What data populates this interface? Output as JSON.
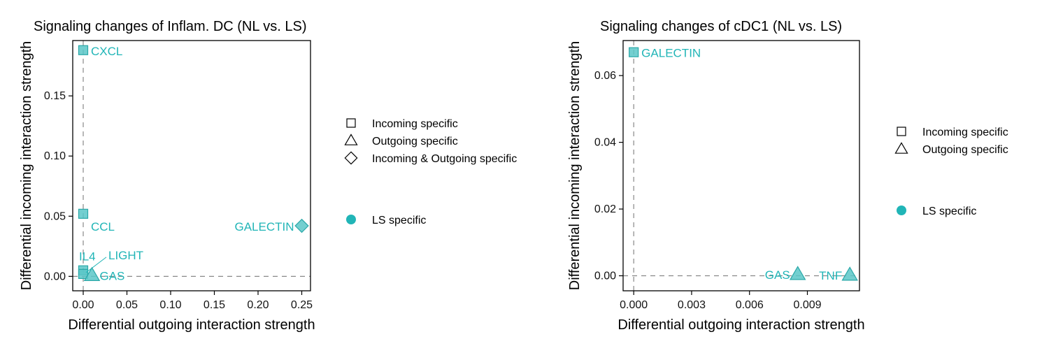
{
  "colors": {
    "point_fill": "#5bc7c8",
    "point_stroke": "#2aa8a8",
    "label": "#21b5b7",
    "axis": "#000000",
    "dashed": "#888888"
  },
  "chart_data": [
    {
      "type": "scatter",
      "title": "Signaling changes of Inflam. DC (NL vs. LS)",
      "xlabel": "Differential outgoing interaction strength",
      "ylabel": "Differential incoming interaction strength",
      "xlim": [
        -0.012,
        0.26
      ],
      "ylim": [
        -0.012,
        0.196
      ],
      "xticks": [
        0.0,
        0.05,
        0.1,
        0.15,
        0.2,
        0.25
      ],
      "xtick_labels": [
        "0.00",
        "0.05",
        "0.10",
        "0.15",
        "0.20",
        "0.25"
      ],
      "yticks": [
        0.0,
        0.05,
        0.1,
        0.15
      ],
      "ytick_labels": [
        "0.00",
        "0.05",
        "0.10",
        "0.15"
      ],
      "points": [
        {
          "label": "CXCL",
          "x": 0.0,
          "y": 0.188,
          "shape": "square",
          "label_side": "right"
        },
        {
          "label": "CCL",
          "x": 0.0,
          "y": 0.052,
          "shape": "square",
          "label_side": "right-below"
        },
        {
          "label": "IL4",
          "x": 0.0,
          "y": 0.005,
          "shape": "square",
          "label_side": "above"
        },
        {
          "label": "LIGHT",
          "x": 0.0,
          "y": 0.002,
          "shape": "square",
          "label_side": "leader"
        },
        {
          "label": "GAS",
          "x": 0.01,
          "y": 0.001,
          "shape": "triangle",
          "label_side": "right"
        },
        {
          "label": "GALECTIN",
          "x": 0.25,
          "y": 0.042,
          "shape": "diamond",
          "label_side": "left"
        }
      ],
      "legend": {
        "shapes": [
          {
            "shape": "square",
            "label": "Incoming specific"
          },
          {
            "shape": "triangle",
            "label": "Outgoing specific"
          },
          {
            "shape": "diamond",
            "label": "Incoming & Outgoing specific"
          }
        ],
        "groups": [
          {
            "label": "LS specific"
          }
        ]
      }
    },
    {
      "type": "scatter",
      "title": "Signaling changes of cDC1 (NL vs. LS)",
      "xlabel": "Differential outgoing interaction strength",
      "ylabel": "Differential incoming interaction strength",
      "xlim": [
        -0.00055,
        0.0117
      ],
      "ylim": [
        -0.0045,
        0.0705
      ],
      "xticks": [
        0.0,
        0.003,
        0.006,
        0.009
      ],
      "xtick_labels": [
        "0.000",
        "0.003",
        "0.006",
        "0.009"
      ],
      "yticks": [
        0.0,
        0.02,
        0.04,
        0.06
      ],
      "ytick_labels": [
        "0.00",
        "0.02",
        "0.04",
        "0.06"
      ],
      "points": [
        {
          "label": "GALECTIN",
          "x": 0.0,
          "y": 0.067,
          "shape": "square",
          "label_side": "right"
        },
        {
          "label": "GAS",
          "x": 0.0085,
          "y": 0.0005,
          "shape": "triangle",
          "label_side": "left"
        },
        {
          "label": "TNF",
          "x": 0.0112,
          "y": 0.0003,
          "shape": "triangle",
          "label_side": "left"
        }
      ],
      "legend": {
        "shapes": [
          {
            "shape": "square",
            "label": "Incoming specific"
          },
          {
            "shape": "triangle",
            "label": "Outgoing specific"
          }
        ],
        "groups": [
          {
            "label": "LS specific"
          }
        ]
      }
    }
  ]
}
